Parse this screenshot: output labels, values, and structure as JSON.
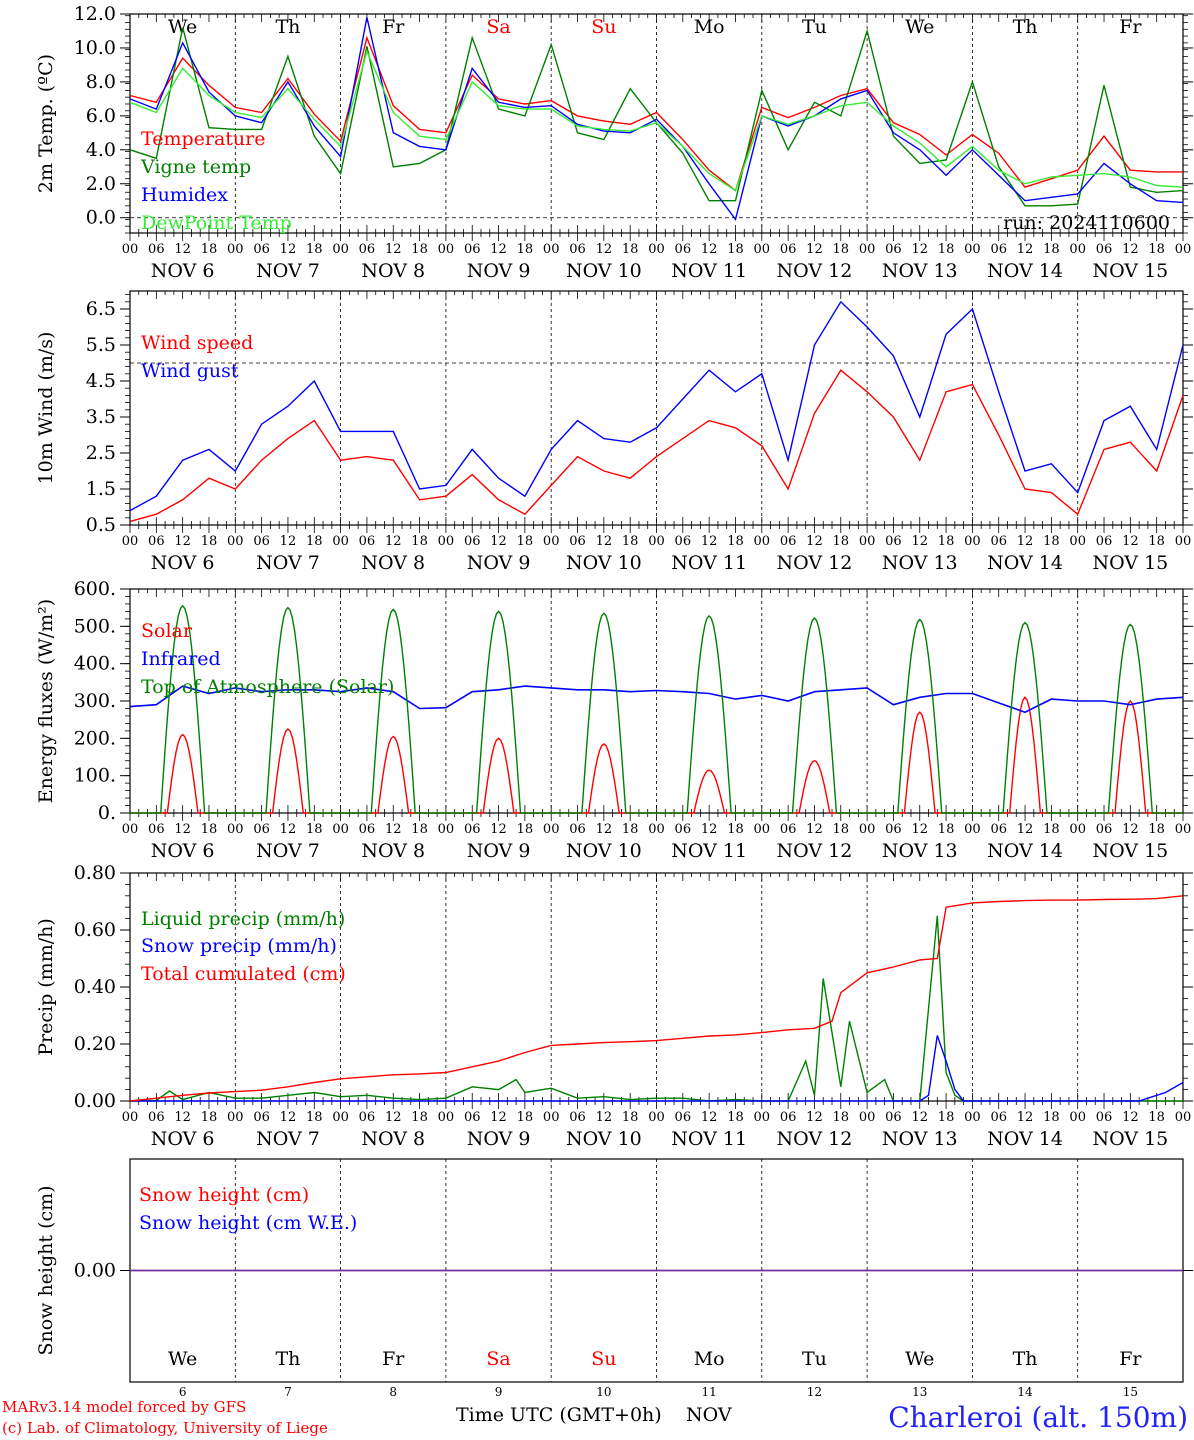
{
  "run_label": "run: 2024110600",
  "days": [
    {
      "abbr": "We",
      "date": "NOV  6",
      "num": "6",
      "weekend": false
    },
    {
      "abbr": "Th",
      "date": "NOV  7",
      "num": "7",
      "weekend": false
    },
    {
      "abbr": "Fr",
      "date": "NOV  8",
      "num": "8",
      "weekend": false
    },
    {
      "abbr": "Sa",
      "date": "NOV  9",
      "num": "9",
      "weekend": true
    },
    {
      "abbr": "Su",
      "date": "NOV 10",
      "num": "10",
      "weekend": true
    },
    {
      "abbr": "Mo",
      "date": "NOV 11",
      "num": "11",
      "weekend": false
    },
    {
      "abbr": "Tu",
      "date": "NOV 12",
      "num": "12",
      "weekend": false
    },
    {
      "abbr": "We",
      "date": "NOV 13",
      "num": "13",
      "weekend": false
    },
    {
      "abbr": "Th",
      "date": "NOV 14",
      "num": "14",
      "weekend": false
    },
    {
      "abbr": "Fr",
      "date": "NOV 15",
      "num": "15",
      "weekend": false
    }
  ],
  "hour_ticks": [
    "00",
    "06",
    "12",
    "18"
  ],
  "colors": {
    "red": "#ff0000",
    "green": "#008000",
    "blue": "#0000ff",
    "lightgreen": "#33ee33",
    "purple": "#7030a0",
    "weekend": "#ff0000"
  },
  "footer": {
    "credit_line1": "MARv3.14 model forced by GFS",
    "credit_line2": "(c) Lab. of Climatology, University of Liege",
    "xaxis_label": "Time UTC (GMT+0h)",
    "month": "NOV",
    "station": "Charleroi (alt. 150m)"
  },
  "chart_data": [
    {
      "type": "line",
      "ylabel": "2m Temp. (ºC)",
      "ylim": [
        -0.9,
        12.0
      ],
      "yticks": [
        "12.0",
        "10.0",
        "8.0",
        "6.0",
        "4.0",
        "2.0",
        "0.0"
      ],
      "ytick_values": [
        12,
        10,
        8,
        6,
        4,
        2,
        0
      ],
      "dashed_y": 0,
      "x_hours": [
        0,
        6,
        12,
        18,
        24,
        30,
        36,
        42,
        48,
        54,
        60,
        66,
        72,
        78,
        84,
        90,
        96,
        102,
        108,
        114,
        120,
        126,
        132,
        138,
        144,
        150,
        156,
        162,
        168,
        174,
        180,
        186,
        192,
        198,
        204,
        210,
        216,
        222,
        228,
        234,
        240
      ],
      "series": [
        {
          "name": "Temperature",
          "color": "red",
          "values": [
            7.2,
            6.8,
            9.4,
            7.8,
            6.5,
            6.2,
            8.2,
            6.1,
            4.5,
            10.6,
            6.6,
            5.2,
            5.0,
            8.4,
            7.0,
            6.7,
            6.9,
            6.0,
            5.7,
            5.5,
            6.2,
            4.6,
            2.8,
            1.6,
            6.5,
            5.9,
            6.5,
            7.2,
            7.6,
            5.6,
            4.9,
            3.7,
            4.9,
            3.8,
            1.8,
            2.3,
            2.8,
            4.8,
            2.8,
            2.7,
            2.7
          ]
        },
        {
          "name": "Vigne temp",
          "color": "green",
          "values": [
            4.0,
            3.5,
            11.2,
            5.3,
            5.2,
            5.2,
            9.5,
            4.8,
            2.6,
            10.1,
            3.0,
            3.2,
            4.0,
            10.6,
            6.4,
            6.0,
            10.2,
            5.0,
            4.6,
            7.6,
            5.6,
            3.8,
            1.0,
            1.0,
            7.5,
            4.0,
            6.8,
            6.0,
            11.0,
            4.8,
            3.2,
            3.4,
            8.0,
            3.0,
            0.7,
            0.7,
            0.8,
            7.8,
            1.8,
            1.5,
            1.6
          ]
        },
        {
          "name": "Humidex",
          "color": "blue",
          "values": [
            7.0,
            6.4,
            10.3,
            7.4,
            6.0,
            5.6,
            8.0,
            5.4,
            3.6,
            11.8,
            5.0,
            4.2,
            4.0,
            8.8,
            6.8,
            6.5,
            6.6,
            5.5,
            5.1,
            5.0,
            5.8,
            4.2,
            2.0,
            -0.1,
            6.0,
            5.4,
            6.0,
            7.0,
            7.5,
            5.0,
            4.0,
            2.5,
            4.0,
            2.5,
            1.0,
            1.2,
            1.4,
            3.2,
            2.0,
            1.0,
            0.9
          ]
        },
        {
          "name": "DewPoint Temp",
          "color": "lightgreen",
          "values": [
            6.8,
            6.2,
            8.8,
            7.2,
            6.2,
            5.9,
            7.6,
            5.8,
            4.2,
            9.8,
            6.2,
            4.8,
            4.6,
            8.0,
            6.6,
            6.4,
            6.4,
            5.4,
            5.2,
            5.1,
            5.6,
            4.2,
            2.6,
            1.6,
            6.0,
            5.5,
            6.0,
            6.6,
            6.8,
            5.4,
            4.4,
            3.0,
            4.2,
            2.8,
            2.0,
            2.4,
            2.5,
            2.6,
            2.4,
            1.9,
            1.8
          ]
        }
      ]
    },
    {
      "type": "line",
      "ylabel": "10m Wind (m/s)",
      "ylim": [
        0.5,
        7.0
      ],
      "yticks": [
        "6.5",
        "5.5",
        "4.5",
        "3.5",
        "2.5",
        "1.5",
        "0.5"
      ],
      "ytick_values": [
        6.5,
        5.5,
        4.5,
        3.5,
        2.5,
        1.5,
        0.5
      ],
      "dashed_y": 5.0,
      "x_hours": [
        0,
        6,
        12,
        18,
        24,
        30,
        36,
        42,
        48,
        54,
        60,
        66,
        72,
        78,
        84,
        90,
        96,
        102,
        108,
        114,
        120,
        126,
        132,
        138,
        144,
        150,
        156,
        162,
        168,
        174,
        180,
        186,
        192,
        198,
        204,
        210,
        216,
        222,
        228,
        234,
        240
      ],
      "series": [
        {
          "name": "Wind speed",
          "color": "red",
          "values": [
            0.6,
            0.8,
            1.2,
            1.8,
            1.5,
            2.3,
            2.9,
            3.4,
            2.3,
            2.4,
            2.3,
            1.2,
            1.3,
            1.9,
            1.2,
            0.8,
            1.6,
            2.4,
            2.0,
            1.8,
            2.4,
            2.9,
            3.4,
            3.2,
            2.7,
            1.5,
            3.6,
            4.8,
            4.2,
            3.5,
            2.3,
            4.2,
            4.4,
            3.0,
            1.5,
            1.4,
            0.8,
            2.6,
            2.8,
            2.0,
            4.1
          ]
        },
        {
          "name": "Wind gust",
          "color": "blue",
          "values": [
            0.9,
            1.3,
            2.3,
            2.6,
            2.0,
            3.3,
            3.8,
            4.5,
            3.1,
            3.1,
            3.1,
            1.5,
            1.6,
            2.6,
            1.8,
            1.3,
            2.6,
            3.4,
            2.9,
            2.8,
            3.2,
            4.0,
            4.8,
            4.2,
            4.7,
            2.3,
            5.5,
            6.7,
            6.0,
            5.2,
            3.5,
            5.8,
            6.5,
            4.2,
            2.0,
            2.2,
            1.4,
            3.4,
            3.8,
            2.6,
            5.5
          ]
        }
      ]
    },
    {
      "type": "line",
      "ylabel": "Energy fluxes (W/m²)",
      "ylim": [
        0,
        600
      ],
      "yticks": [
        "600.",
        "500.",
        "400.",
        "300.",
        "200.",
        "100.",
        "0."
      ],
      "ytick_values": [
        600,
        500,
        400,
        300,
        200,
        100,
        0
      ],
      "dashed_y": null,
      "series": [
        {
          "name": "Solar",
          "color": "red",
          "peaks": [
            210,
            225,
            205,
            200,
            185,
            115,
            140,
            270,
            310,
            300
          ]
        },
        {
          "name": "Infrared",
          "color": "blue",
          "x_hours": [
            0,
            6,
            12,
            18,
            24,
            30,
            36,
            42,
            48,
            54,
            60,
            66,
            72,
            78,
            84,
            90,
            96,
            102,
            108,
            114,
            120,
            126,
            132,
            138,
            144,
            150,
            156,
            162,
            168,
            174,
            180,
            186,
            192,
            198,
            204,
            210,
            216,
            222,
            228,
            234,
            240
          ],
          "values": [
            285,
            290,
            340,
            320,
            335,
            325,
            330,
            330,
            325,
            335,
            325,
            280,
            282,
            325,
            330,
            340,
            335,
            330,
            330,
            325,
            328,
            325,
            320,
            305,
            315,
            300,
            325,
            330,
            335,
            290,
            310,
            320,
            320,
            295,
            270,
            305,
            300,
            300,
            290,
            305,
            310
          ]
        },
        {
          "name": "Top of Atmosphere (Solar)",
          "color": "green",
          "peaks": [
            555,
            550,
            545,
            540,
            535,
            528,
            522,
            518,
            510,
            505
          ]
        }
      ]
    },
    {
      "type": "line",
      "ylabel": "Precip (mm/h)",
      "ylim": [
        0,
        0.8
      ],
      "yticks": [
        "0.80",
        "0.60",
        "0.40",
        "0.20",
        "0.00"
      ],
      "ytick_values": [
        0.8,
        0.6,
        0.4,
        0.2,
        0.0
      ],
      "dashed_y": null,
      "series": [
        {
          "name": "Liquid precip (mm/h)",
          "color": "green",
          "x_hours": [
            0,
            6,
            9,
            12,
            18,
            24,
            30,
            36,
            42,
            48,
            54,
            60,
            66,
            72,
            78,
            84,
            88,
            90,
            96,
            102,
            108,
            114,
            120,
            126,
            132,
            138,
            144,
            150,
            154,
            156,
            158,
            162,
            164,
            168,
            172,
            174,
            180,
            184,
            186,
            188,
            190,
            192,
            198,
            204,
            210,
            216,
            222,
            228,
            234,
            240
          ],
          "values": [
            0,
            0.002,
            0.035,
            0.005,
            0.03,
            0.01,
            0.01,
            0.02,
            0.03,
            0.015,
            0.02,
            0.01,
            0.005,
            0.01,
            0.05,
            0.04,
            0.075,
            0.03,
            0.045,
            0.01,
            0.015,
            0.005,
            0.01,
            0.01,
            0.0,
            0.005,
            0.0,
            0.0,
            0.14,
            0.02,
            0.43,
            0.05,
            0.28,
            0.03,
            0.075,
            0.0,
            0.0,
            0.65,
            0.1,
            0.02,
            0.0,
            0.0,
            0.0,
            0.0,
            0.0,
            0.0,
            0.0,
            0.0,
            0.0,
            0.0
          ]
        },
        {
          "name": "Snow precip (mm/h)",
          "color": "blue",
          "x_hours": [
            0,
            150,
            180,
            182,
            184,
            186,
            188,
            190,
            192,
            198,
            210,
            230,
            236,
            240
          ],
          "values": [
            0,
            0,
            0,
            0.02,
            0.23,
            0.14,
            0.04,
            0.0,
            0.0,
            0.0,
            0.0,
            0.0,
            0.03,
            0.065
          ]
        },
        {
          "name": "Total cumulated (cm)",
          "color": "red",
          "x_hours": [
            0,
            6,
            12,
            18,
            24,
            30,
            36,
            42,
            48,
            54,
            60,
            66,
            72,
            78,
            84,
            90,
            96,
            102,
            108,
            114,
            120,
            126,
            132,
            138,
            144,
            150,
            156,
            160,
            162,
            168,
            174,
            180,
            184,
            186,
            192,
            198,
            204,
            210,
            216,
            222,
            228,
            234,
            240
          ],
          "values": [
            0,
            0.01,
            0.02,
            0.028,
            0.033,
            0.038,
            0.05,
            0.065,
            0.078,
            0.085,
            0.092,
            0.095,
            0.1,
            0.12,
            0.14,
            0.17,
            0.195,
            0.2,
            0.205,
            0.208,
            0.212,
            0.22,
            0.228,
            0.232,
            0.24,
            0.25,
            0.255,
            0.28,
            0.38,
            0.45,
            0.47,
            0.495,
            0.5,
            0.68,
            0.695,
            0.7,
            0.703,
            0.705,
            0.705,
            0.707,
            0.708,
            0.71,
            0.72
          ]
        }
      ]
    },
    {
      "type": "line",
      "ylabel": "Snow height (cm)",
      "ylim": [
        -1,
        1
      ],
      "yticks": [
        "0.00"
      ],
      "ytick_values": [
        0
      ],
      "dashed_y": null,
      "series": [
        {
          "name": "Snow height (cm)",
          "color": "red",
          "x_hours": [
            0,
            240
          ],
          "values": [
            0,
            0
          ]
        },
        {
          "name": "Snow height (cm W.E.)",
          "color": "blue",
          "x_hours": [
            0,
            240
          ],
          "values": [
            0,
            0
          ]
        }
      ]
    }
  ]
}
